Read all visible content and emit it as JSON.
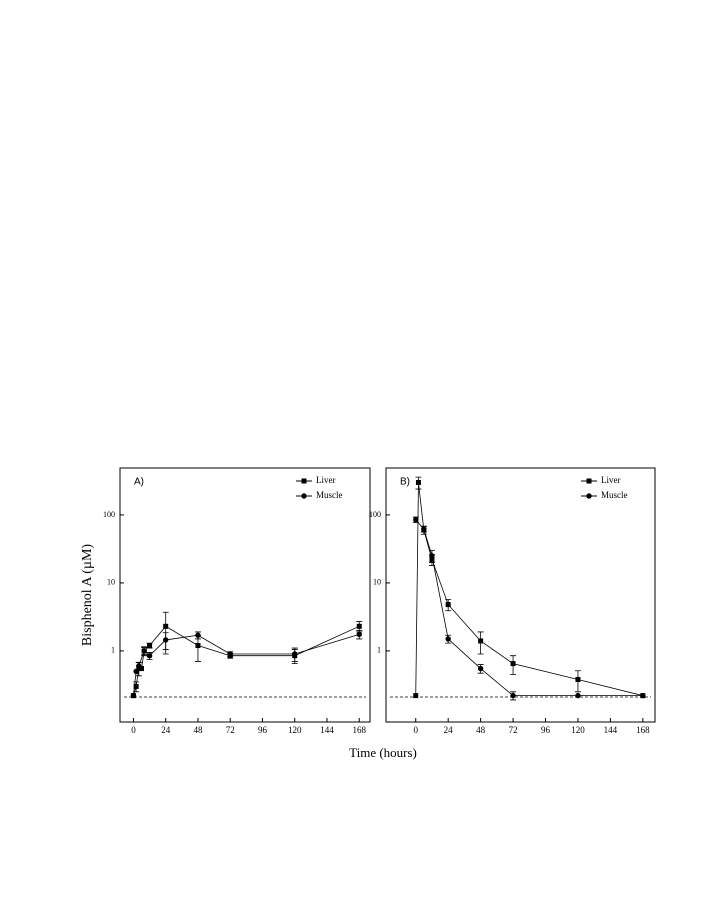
{
  "y_axis_label": "Bisphenol A  (µM)",
  "x_axis_label": "Time (hours)",
  "chart_data": [
    {
      "type": "line",
      "panel_label": "A)",
      "log_y": true,
      "xlim": [
        -10,
        176
      ],
      "ylim": [
        0.09,
        490
      ],
      "xticks": [
        0,
        24,
        48,
        72,
        96,
        120,
        144,
        168
      ],
      "yticks": [
        1,
        10,
        100
      ],
      "hline": 0.21,
      "series": [
        {
          "name": "Liver",
          "color": "#000000",
          "marker": "square",
          "x": [
            0,
            2,
            4,
            6,
            8,
            12,
            24,
            48,
            72,
            120,
            168
          ],
          "values": [
            0.22,
            0.3,
            0.55,
            0.55,
            1.0,
            1.2,
            2.3,
            1.2,
            0.85,
            0.85,
            2.3
          ],
          "errors": [
            null,
            0.05,
            0.12,
            null,
            0.15,
            0.1,
            1.4,
            0.5,
            0.07,
            0.2,
            0.4
          ]
        },
        {
          "name": "Muscle",
          "color": "#000000",
          "marker": "circle",
          "x": [
            0,
            2,
            4,
            8,
            12,
            24,
            48,
            72,
            120,
            168
          ],
          "values": [
            0.22,
            0.5,
            0.6,
            1.0,
            0.85,
            1.45,
            1.7,
            0.9,
            0.9,
            1.75
          ],
          "errors": [
            null,
            null,
            0.08,
            0.12,
            0.1,
            0.4,
            0.2,
            0.07,
            0.2,
            0.25
          ]
        }
      ]
    },
    {
      "type": "line",
      "panel_label": "B)",
      "log_y": true,
      "xlim": [
        -22,
        177
      ],
      "ylim": [
        0.09,
        490
      ],
      "xticks": [
        0,
        24,
        48,
        72,
        96,
        120,
        144,
        168
      ],
      "yticks": [
        1,
        10,
        100
      ],
      "hline": 0.21,
      "series": [
        {
          "name": "Liver",
          "color": "#000000",
          "marker": "square",
          "x": [
            0,
            2,
            6,
            12,
            24,
            48,
            72,
            120,
            168
          ],
          "values": [
            0.22,
            300,
            60,
            22,
            4.8,
            1.4,
            0.65,
            0.38,
            0.22
          ],
          "errors": [
            null,
            60,
            8,
            4,
            0.9,
            0.5,
            0.2,
            0.13,
            null
          ]
        },
        {
          "name": "Muscle",
          "color": "#000000",
          "marker": "circle",
          "x": [
            0,
            6,
            12,
            24,
            48,
            72,
            120,
            168
          ],
          "values": [
            85,
            62,
            25,
            1.5,
            0.55,
            0.22,
            0.22,
            0.22
          ],
          "errors": [
            8,
            6,
            5,
            0.2,
            0.08,
            0.03,
            null,
            null
          ]
        }
      ]
    }
  ]
}
